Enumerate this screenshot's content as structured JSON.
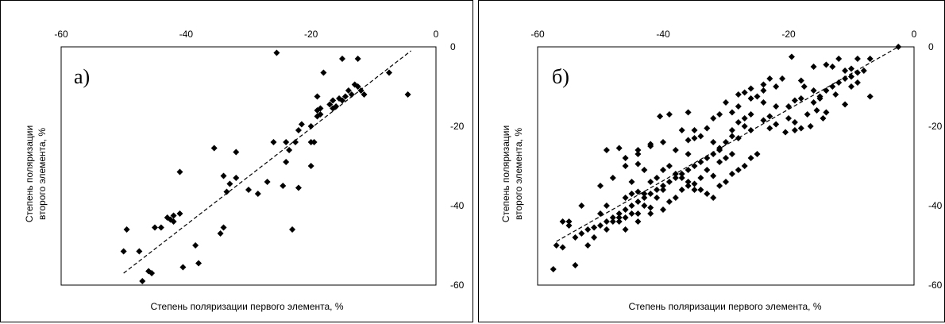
{
  "chart_data": [
    {
      "type": "scatter",
      "panel_label": "а)",
      "xlabel": "Степень поляризации первого элемента, %",
      "ylabel_lines": [
        "Степень поляризации",
        "второго элемента, %"
      ],
      "xlim": [
        -60,
        0
      ],
      "ylim": [
        -60,
        0
      ],
      "xticks": [
        "-60",
        "-40",
        "-20",
        "0"
      ],
      "yticks": [
        "0",
        "-20",
        "-40",
        "-60"
      ],
      "grid": false,
      "trendline": {
        "style": "dashed",
        "points": [
          [
            -50,
            -57
          ],
          [
            -4,
            -1
          ]
        ]
      },
      "series": [
        {
          "points": [
            [
              -25.5,
              -1.5
            ],
            [
              -15,
              -3
            ],
            [
              -12.5,
              -3
            ],
            [
              -18,
              -6.5
            ],
            [
              -7.5,
              -6.5
            ],
            [
              -13,
              -9.5
            ],
            [
              -12.5,
              -10
            ],
            [
              -14,
              -11
            ],
            [
              -12,
              -11
            ],
            [
              -13.5,
              -12
            ],
            [
              -11.5,
              -12
            ],
            [
              -4.5,
              -12
            ],
            [
              -14.5,
              -12.5
            ],
            [
              -15.5,
              -13
            ],
            [
              -19,
              -12.5
            ],
            [
              -15,
              -13.5
            ],
            [
              -16.5,
              -13.5
            ],
            [
              -17,
              -14.5
            ],
            [
              -16,
              -15
            ],
            [
              -16.5,
              -15.5
            ],
            [
              -18.5,
              -15.5
            ],
            [
              -19,
              -16
            ],
            [
              -18.5,
              -17
            ],
            [
              -19,
              -17.5
            ],
            [
              -20,
              -20
            ],
            [
              -21.5,
              -19.5
            ],
            [
              -22,
              -21
            ],
            [
              -22.5,
              -24
            ],
            [
              -20,
              -24
            ],
            [
              -19.5,
              -24
            ],
            [
              -24,
              -24
            ],
            [
              -26,
              -24
            ],
            [
              -20,
              -30
            ],
            [
              -24,
              -29
            ],
            [
              -23.5,
              -26
            ],
            [
              -32,
              -26.5
            ],
            [
              -35.5,
              -25.5
            ],
            [
              -22,
              -35.5
            ],
            [
              -24.5,
              -35
            ],
            [
              -27,
              -34
            ],
            [
              -30,
              -36
            ],
            [
              -28.5,
              -37
            ],
            [
              -32,
              -33
            ],
            [
              -33.5,
              -36.5
            ],
            [
              -33,
              -34.5
            ],
            [
              -34,
              -32.5
            ],
            [
              -38,
              -54.5
            ],
            [
              -23,
              -46
            ],
            [
              -34,
              -45.5
            ],
            [
              -34.5,
              -47
            ],
            [
              -38.5,
              -50
            ],
            [
              -41,
              -31.5
            ],
            [
              -41,
              -42
            ],
            [
              -42,
              -42.5
            ],
            [
              -43,
              -43
            ],
            [
              -42.5,
              -43.5
            ],
            [
              -42,
              -44
            ],
            [
              -44,
              -45.5
            ],
            [
              -45,
              -45.5
            ],
            [
              -40.5,
              -55.5
            ],
            [
              -46,
              -56.5
            ],
            [
              -45.5,
              -57
            ],
            [
              -47.5,
              -51.5
            ],
            [
              -49.5,
              -46
            ],
            [
              -50,
              -51.5
            ],
            [
              -47,
              -59
            ]
          ]
        }
      ]
    },
    {
      "type": "scatter",
      "panel_label": "б)",
      "xlabel": "Степень поляризации первого элемента, %",
      "ylabel_lines": [
        "Степень поляризации",
        "второго элемента, %"
      ],
      "xlim": [
        -60,
        0
      ],
      "ylim": [
        -60,
        0
      ],
      "xticks": [
        "-60",
        "-40",
        "-20",
        "0"
      ],
      "yticks": [
        "0",
        "-20",
        "-40",
        "-60"
      ],
      "grid": false,
      "trendline": {
        "style": "dashed",
        "points": [
          [
            -57,
            -49
          ],
          [
            -2.5,
            0
          ]
        ]
      },
      "series": [
        {
          "points": [
            [
              -2.5,
              0
            ],
            [
              -7,
              -3
            ],
            [
              -9,
              -3
            ],
            [
              -12,
              -3
            ],
            [
              -13,
              -5
            ],
            [
              -14,
              -4.5
            ],
            [
              -19.5,
              -2.5
            ],
            [
              -10,
              -5.5
            ],
            [
              -8,
              -6
            ],
            [
              -16,
              -5
            ],
            [
              -18,
              -8.5
            ],
            [
              -21,
              -8
            ],
            [
              -23,
              -8
            ],
            [
              -22,
              -10
            ],
            [
              -24,
              -9.5
            ],
            [
              -26,
              -10.5
            ],
            [
              -27,
              -11.5
            ],
            [
              -25,
              -12.5
            ],
            [
              -28,
              -12
            ],
            [
              -30,
              -14
            ],
            [
              -29,
              -16.5
            ],
            [
              -31,
              -17
            ],
            [
              -32,
              -18
            ],
            [
              -36,
              -16.5
            ],
            [
              -39,
              -17
            ],
            [
              -40.5,
              -17.5
            ],
            [
              -42,
              -24.5
            ],
            [
              -44,
              -26
            ],
            [
              -47,
              -25.5
            ],
            [
              -49,
              -26
            ],
            [
              -46,
              -28
            ],
            [
              -44,
              -29.5
            ],
            [
              -43,
              -31
            ],
            [
              -45,
              -34
            ],
            [
              -37,
              -21
            ],
            [
              -35,
              -21
            ],
            [
              -33,
              -20.5
            ],
            [
              -35,
              -23
            ],
            [
              -36,
              -23.5
            ],
            [
              -34,
              -22.5
            ],
            [
              -32,
              -24
            ],
            [
              -31,
              -25.5
            ],
            [
              -29,
              -22.5
            ],
            [
              -28,
              -23
            ],
            [
              -27,
              -20
            ],
            [
              -26,
              -21
            ],
            [
              -24,
              -18.5
            ],
            [
              -23,
              -17.5
            ],
            [
              -22,
              -19.5
            ],
            [
              -20,
              -18
            ],
            [
              -19,
              -19
            ],
            [
              -17,
              -17
            ],
            [
              -16,
              -14
            ],
            [
              -15,
              -13
            ],
            [
              -14,
              -11
            ],
            [
              -13,
              -10
            ],
            [
              -12,
              -9
            ],
            [
              -11,
              -8
            ],
            [
              -10,
              -7.5
            ],
            [
              -9,
              -6.5
            ],
            [
              -12.5,
              -12
            ],
            [
              -15,
              -12.5
            ],
            [
              -16,
              -11
            ],
            [
              -17.5,
              -10
            ],
            [
              -18,
              -13
            ],
            [
              -19,
              -13.5
            ],
            [
              -20,
              -15
            ],
            [
              -15.5,
              -16
            ],
            [
              -14,
              -16.5
            ],
            [
              -14.5,
              -18
            ],
            [
              -16.5,
              -20
            ],
            [
              -18,
              -20.5
            ],
            [
              -19,
              -21
            ],
            [
              -20.5,
              -21.5
            ],
            [
              -23,
              -20.5
            ],
            [
              -22,
              -15
            ],
            [
              -24,
              -14
            ],
            [
              -26,
              -17
            ],
            [
              -27,
              -18
            ],
            [
              -28,
              -19
            ],
            [
              -29,
              -21
            ],
            [
              -30,
              -24
            ],
            [
              -31,
              -26
            ],
            [
              -32,
              -27
            ],
            [
              -33,
              -28
            ],
            [
              -34,
              -29
            ],
            [
              -35,
              -30
            ],
            [
              -36,
              -31
            ],
            [
              -37,
              -32
            ],
            [
              -38,
              -33
            ],
            [
              -39,
              -34
            ],
            [
              -40,
              -35
            ],
            [
              -41,
              -36
            ],
            [
              -42,
              -37
            ],
            [
              -43,
              -38
            ],
            [
              -44,
              -39
            ],
            [
              -45,
              -40
            ],
            [
              -46,
              -41
            ],
            [
              -47,
              -42
            ],
            [
              -48,
              -43
            ],
            [
              -49,
              -44
            ],
            [
              -50,
              -45
            ],
            [
              -51,
              -45.5
            ],
            [
              -52,
              -46
            ],
            [
              -53,
              -47
            ],
            [
              -54,
              -48
            ],
            [
              -55,
              -45
            ],
            [
              -56,
              -44
            ],
            [
              -57,
              -50
            ],
            [
              -57.5,
              -56
            ],
            [
              -54,
              -55
            ],
            [
              -52,
              -50
            ],
            [
              -51,
              -48
            ],
            [
              -50,
              -42
            ],
            [
              -49,
              -40
            ],
            [
              -48,
              -44
            ],
            [
              -47,
              -43
            ],
            [
              -46,
              -38
            ],
            [
              -45,
              -37
            ],
            [
              -44,
              -36.5
            ],
            [
              -43,
              -37
            ],
            [
              -42,
              -34
            ],
            [
              -41,
              -33
            ],
            [
              -40,
              -31
            ],
            [
              -39,
              -30
            ],
            [
              -38,
              -32
            ],
            [
              -37,
              -33
            ],
            [
              -36,
              -34
            ],
            [
              -35,
              -34.5
            ],
            [
              -34,
              -36
            ],
            [
              -33,
              -37
            ],
            [
              -32,
              -38
            ],
            [
              -31,
              -35
            ],
            [
              -30,
              -34
            ],
            [
              -29,
              -32
            ],
            [
              -28,
              -31
            ],
            [
              -27,
              -30
            ],
            [
              -26,
              -28
            ],
            [
              -25,
              -27
            ],
            [
              -33,
              -31
            ],
            [
              -32,
              -32.5
            ],
            [
              -31,
              -29
            ],
            [
              -30,
              -28
            ],
            [
              -29,
              -27
            ],
            [
              -36,
              -27
            ],
            [
              -38,
              -26
            ],
            [
              -40,
              -24
            ],
            [
              -42,
              -25
            ],
            [
              -44,
              -27
            ],
            [
              -46,
              -30
            ],
            [
              -48,
              -33
            ],
            [
              -50,
              -35
            ],
            [
              -53,
              -40
            ],
            [
              -55,
              -44
            ],
            [
              -56,
              -50.5
            ],
            [
              -46,
              -46
            ],
            [
              -44,
              -44
            ],
            [
              -42,
              -42
            ],
            [
              -40,
              -41
            ],
            [
              -39,
              -39
            ],
            [
              -38,
              -38
            ],
            [
              -37,
              -36
            ],
            [
              -36,
              -35
            ],
            [
              -35,
              -36
            ],
            [
              -34,
              -33
            ],
            [
              -40,
              -36
            ],
            [
              -41,
              -38
            ],
            [
              -43,
              -40
            ],
            [
              -45,
              -42
            ],
            [
              -47,
              -44
            ],
            [
              -49,
              -46
            ],
            [
              -42,
              -40.5
            ],
            [
              -44,
              -42
            ],
            [
              -46,
              -43
            ],
            [
              -28,
              -15
            ],
            [
              -26,
              -13
            ],
            [
              -24,
              -11
            ],
            [
              -11,
              -14.5
            ],
            [
              -7,
              -12.5
            ],
            [
              -9,
              -9
            ],
            [
              -10,
              -10
            ],
            [
              -11,
              -6
            ]
          ]
        }
      ]
    }
  ]
}
